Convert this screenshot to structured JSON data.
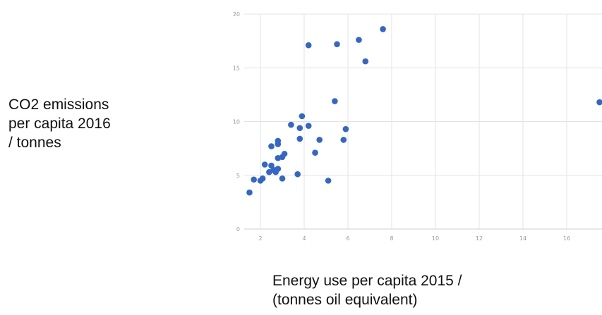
{
  "chart_data": {
    "type": "scatter",
    "ylabel": "CO2 emissions\nper capita 2016\n/ tonnes",
    "xlabel": "Energy use per capita 2015 /\n(tonnes oil equivalent)",
    "xlim": [
      1.5,
      17.5
    ],
    "ylim": [
      0,
      20
    ],
    "xticks": [
      2,
      4,
      6,
      8,
      10,
      12,
      14,
      16
    ],
    "yticks": [
      0,
      5,
      10,
      15,
      20
    ],
    "grid": true,
    "colors": {
      "points": "#3366cc",
      "grid": "#e3e3e3",
      "tick_text": "#9a9a9a"
    },
    "points": [
      {
        "x": 1.5,
        "y": 3.4
      },
      {
        "x": 1.7,
        "y": 4.6
      },
      {
        "x": 2.0,
        "y": 4.5
      },
      {
        "x": 2.1,
        "y": 4.7
      },
      {
        "x": 2.2,
        "y": 6.0
      },
      {
        "x": 2.4,
        "y": 5.3
      },
      {
        "x": 2.5,
        "y": 5.9
      },
      {
        "x": 2.5,
        "y": 7.7
      },
      {
        "x": 2.6,
        "y": 5.5
      },
      {
        "x": 2.7,
        "y": 5.3
      },
      {
        "x": 2.8,
        "y": 7.9
      },
      {
        "x": 2.8,
        "y": 8.2
      },
      {
        "x": 2.8,
        "y": 6.6
      },
      {
        "x": 2.8,
        "y": 5.6
      },
      {
        "x": 3.0,
        "y": 6.7
      },
      {
        "x": 3.0,
        "y": 4.7
      },
      {
        "x": 3.1,
        "y": 7.0
      },
      {
        "x": 3.4,
        "y": 9.7
      },
      {
        "x": 3.7,
        "y": 5.1
      },
      {
        "x": 3.8,
        "y": 9.4
      },
      {
        "x": 3.8,
        "y": 8.4
      },
      {
        "x": 3.9,
        "y": 10.5
      },
      {
        "x": 4.2,
        "y": 9.6
      },
      {
        "x": 4.2,
        "y": 17.1
      },
      {
        "x": 4.5,
        "y": 7.1
      },
      {
        "x": 4.7,
        "y": 8.3
      },
      {
        "x": 5.1,
        "y": 4.5
      },
      {
        "x": 5.4,
        "y": 11.9
      },
      {
        "x": 5.5,
        "y": 17.2
      },
      {
        "x": 5.8,
        "y": 8.3
      },
      {
        "x": 5.9,
        "y": 9.3
      },
      {
        "x": 6.5,
        "y": 17.6
      },
      {
        "x": 6.8,
        "y": 15.6
      },
      {
        "x": 7.6,
        "y": 18.6
      },
      {
        "x": 17.5,
        "y": 11.8
      }
    ]
  }
}
